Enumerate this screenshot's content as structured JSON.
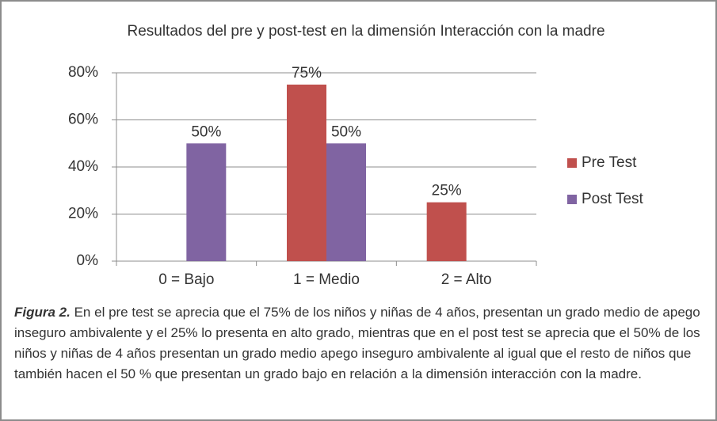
{
  "chart_data": {
    "type": "bar",
    "title": "Resultados del pre y post-test en la dimensión Interacción con la madre",
    "categories": [
      "0 = Bajo",
      "1 = Medio",
      "2 = Alto"
    ],
    "series": [
      {
        "name": "Pre Test",
        "color": "#c0504d",
        "values": [
          null,
          75,
          25
        ],
        "value_labels": [
          null,
          "75%",
          "25%"
        ]
      },
      {
        "name": "Post Test",
        "color": "#8064a2",
        "values": [
          50,
          50,
          null
        ],
        "value_labels": [
          "50%",
          "50%",
          null
        ]
      }
    ],
    "ylim": [
      0,
      80
    ],
    "yticks": [
      {
        "value": 0,
        "label": "0%"
      },
      {
        "value": 20,
        "label": "20%"
      },
      {
        "value": 40,
        "label": "40%"
      },
      {
        "value": 60,
        "label": "60%"
      },
      {
        "value": 80,
        "label": "80%"
      }
    ],
    "grid": true,
    "legend": "right"
  },
  "caption": {
    "label": "Figura 2.",
    "text": "En el pre test se aprecia que el 75% de los niños y niñas de 4 años, presentan un grado medio de apego inseguro ambivalente y el 25% lo presenta en alto grado, mientras que en el post test se aprecia que el 50% de los niños y niñas de 4 años presentan un grado medio apego inseguro ambivalente al igual que el resto de niños que también hacen el 50 % que presentan un grado bajo en relación a la dimensión interacción con la madre."
  }
}
